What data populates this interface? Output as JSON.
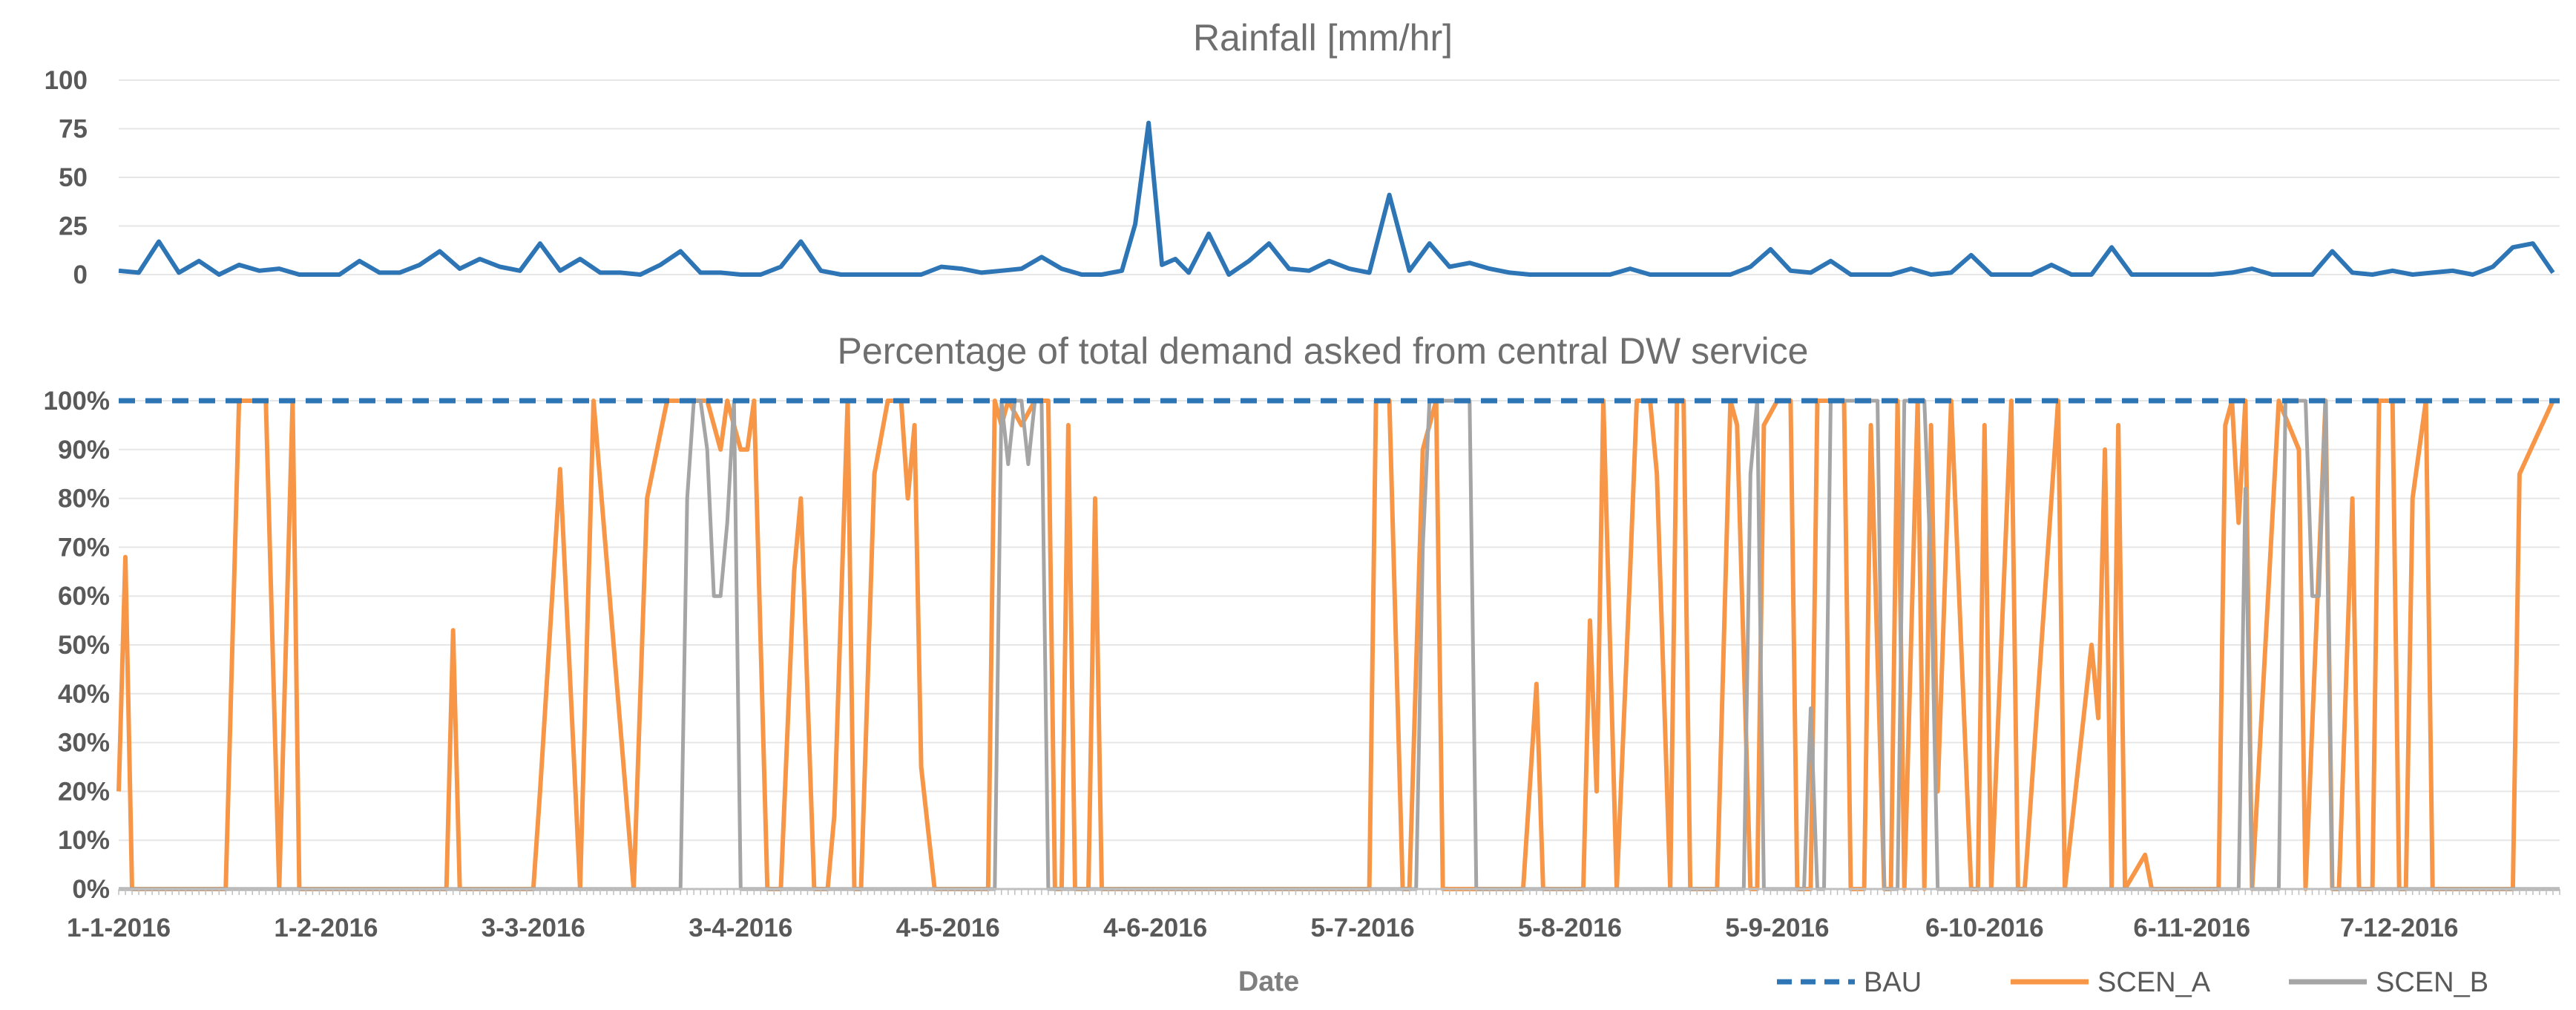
{
  "chart_data": [
    {
      "type": "line",
      "title": "Rainfall [mm/hr]",
      "xlabel": "",
      "ylabel": "",
      "ylim": [
        0,
        100
      ],
      "yticks": [
        "100",
        "75",
        "50",
        "25",
        "0"
      ],
      "x": [
        0,
        3,
        6,
        9,
        12,
        15,
        18,
        21,
        24,
        27,
        30,
        33,
        36,
        39,
        42,
        45,
        48,
        51,
        54,
        57,
        60,
        63,
        66,
        69,
        72,
        75,
        78,
        81,
        84,
        87,
        90,
        93,
        96,
        99,
        102,
        105,
        108,
        111,
        114,
        117,
        120,
        123,
        126,
        129,
        132,
        135,
        138,
        141,
        144,
        147,
        150,
        152,
        154,
        156,
        158,
        160,
        163,
        166,
        169,
        172,
        175,
        178,
        181,
        184,
        187,
        190,
        193,
        196,
        199,
        202,
        205,
        208,
        211,
        214,
        217,
        220,
        223,
        226,
        229,
        232,
        235,
        238,
        241,
        244,
        247,
        250,
        253,
        256,
        259,
        262,
        265,
        268,
        271,
        274,
        277,
        280,
        283,
        286,
        289,
        292,
        295,
        298,
        301,
        304,
        307,
        310,
        313,
        316,
        319,
        322,
        325,
        328,
        331,
        334,
        337,
        340,
        343,
        346,
        349,
        352,
        355,
        358,
        361,
        364
      ],
      "series": [
        {
          "name": "Rainfall",
          "values": [
            2,
            1,
            17,
            1,
            7,
            0,
            5,
            2,
            3,
            0,
            0,
            0,
            7,
            1,
            1,
            5,
            12,
            3,
            8,
            4,
            2,
            16,
            2,
            8,
            1,
            1,
            0,
            5,
            12,
            1,
            1,
            0,
            0,
            4,
            17,
            2,
            0,
            0,
            0,
            0,
            0,
            4,
            3,
            1,
            2,
            3,
            9,
            3,
            0,
            0,
            2,
            26,
            78,
            5,
            8,
            1,
            21,
            0,
            7,
            16,
            3,
            2,
            7,
            3,
            1,
            41,
            2,
            16,
            4,
            6,
            3,
            1,
            0,
            0,
            0,
            0,
            0,
            3,
            0,
            0,
            0,
            0,
            0,
            4,
            13,
            2,
            1,
            7,
            0,
            0,
            0,
            3,
            0,
            1,
            10,
            0,
            0,
            0,
            5,
            0,
            0,
            14,
            0,
            0,
            0,
            0,
            0,
            1,
            3,
            0,
            0,
            0,
            12,
            1,
            0,
            2,
            0,
            1,
            2,
            0,
            4,
            14,
            16,
            1
          ]
        }
      ]
    },
    {
      "type": "line",
      "title": "Percentage of total demand asked from central DW service",
      "xlabel": "Date",
      "ylabel": "",
      "ylim": [
        0,
        100
      ],
      "yticks": [
        "100%",
        "90%",
        "80%",
        "70%",
        "60%",
        "50%",
        "40%",
        "30%",
        "20%",
        "10%",
        "0%"
      ],
      "categories": [
        "1-1-2016",
        "1-2-2016",
        "3-3-2016",
        "3-4-2016",
        "4-5-2016",
        "4-6-2016",
        "5-7-2016",
        "5-8-2016",
        "5-9-2016",
        "6-10-2016",
        "6-11-2016",
        "7-12-2016"
      ],
      "legend_position": "bottom-right",
      "series": [
        {
          "name": "BAU",
          "style": "dashed",
          "x": [
            0,
            365
          ],
          "values": [
            100,
            100
          ]
        },
        {
          "name": "SCEN_A",
          "style": "solid",
          "x": [
            0,
            1,
            2,
            3,
            16,
            18,
            20,
            22,
            24,
            26,
            27,
            49,
            50,
            51,
            62,
            63,
            66,
            69,
            71,
            77,
            79,
            82,
            88,
            90,
            91,
            93,
            94,
            95,
            97,
            98,
            99,
            101,
            102,
            104,
            106,
            107,
            109,
            110,
            111,
            113,
            115,
            117,
            118,
            119,
            120,
            122,
            130,
            131,
            132,
            133,
            135,
            137,
            139,
            140,
            141,
            142,
            143,
            145,
            146,
            147,
            148,
            150,
            151,
            152,
            187,
            188,
            190,
            192,
            193,
            195,
            197,
            198,
            210,
            212,
            213,
            219,
            220,
            221,
            222,
            224,
            226,
            227,
            229,
            230,
            232,
            233,
            234,
            235,
            236,
            238,
            239,
            241,
            242,
            244,
            245,
            246,
            248,
            249,
            250,
            251,
            253,
            254,
            255,
            258,
            259,
            261,
            262,
            264,
            265,
            266,
            267,
            269,
            270,
            271,
            272,
            274,
            277,
            278,
            279,
            280,
            283,
            284,
            285,
            290,
            291,
            295,
            296,
            297,
            298,
            299,
            300,
            303,
            304,
            314,
            315,
            316,
            317,
            318,
            319,
            321,
            323,
            326,
            327,
            330,
            331,
            332,
            334,
            335,
            337,
            338,
            339,
            340,
            341,
            342,
            343,
            345,
            346,
            352,
            353,
            355,
            358,
            359,
            364,
            365
          ],
          "values": [
            20,
            68,
            0,
            0,
            0,
            100,
            100,
            100,
            0,
            100,
            0,
            0,
            53,
            0,
            0,
            20,
            86,
            0,
            100,
            0,
            80,
            100,
            100,
            90,
            100,
            90,
            90,
            100,
            0,
            0,
            0,
            65,
            80,
            0,
            0,
            15,
            100,
            0,
            0,
            85,
            100,
            100,
            80,
            95,
            25,
            0,
            0,
            100,
            95,
            100,
            95,
            100,
            100,
            0,
            0,
            95,
            0,
            0,
            80,
            0,
            0,
            0,
            0,
            0,
            0,
            100,
            100,
            0,
            0,
            90,
            100,
            0,
            0,
            42,
            0,
            0,
            55,
            20,
            100,
            0,
            65,
            100,
            100,
            85,
            0,
            100,
            100,
            0,
            0,
            0,
            0,
            100,
            95,
            0,
            0,
            95,
            100,
            100,
            100,
            0,
            0,
            100,
            100,
            100,
            0,
            0,
            95,
            0,
            0,
            100,
            0,
            100,
            0,
            95,
            20,
            100,
            0,
            0,
            95,
            0,
            100,
            0,
            0,
            100,
            0,
            50,
            35,
            90,
            0,
            95,
            0,
            7,
            0,
            0,
            95,
            100,
            75,
            100,
            0,
            50,
            100,
            90,
            0,
            100,
            0,
            0,
            80,
            0,
            0,
            100,
            100,
            100,
            0,
            0,
            80,
            100,
            0,
            0,
            0,
            0,
            0,
            85,
            100,
            100
          ]
        },
        {
          "name": "SCEN_B",
          "style": "solid",
          "x": [
            0,
            84,
            85,
            86,
            87,
            88,
            89,
            90,
            91,
            92,
            93,
            131,
            132,
            133,
            134,
            135,
            136,
            137,
            138,
            139,
            140,
            141,
            194,
            195,
            196,
            198,
            199,
            201,
            202,
            203,
            243,
            244,
            245,
            246,
            252,
            253,
            254,
            255,
            256,
            257,
            262,
            263,
            264,
            265,
            266,
            267,
            270,
            271,
            272,
            273,
            274,
            279,
            280,
            281,
            282,
            284,
            285,
            286,
            287,
            288,
            289,
            290,
            291,
            292,
            293,
            294,
            295,
            296,
            297,
            298,
            299,
            300,
            301,
            302,
            303,
            304,
            305,
            317,
            318,
            319,
            321,
            322,
            323,
            324,
            325,
            326,
            327,
            328,
            329,
            330,
            331,
            332,
            333,
            334,
            335,
            365
          ],
          "values": [
            0,
            0,
            80,
            100,
            100,
            90,
            60,
            60,
            75,
            100,
            0,
            0,
            100,
            87,
            100,
            100,
            87,
            100,
            100,
            0,
            0,
            0,
            0,
            70,
            100,
            100,
            100,
            100,
            100,
            0,
            0,
            85,
            100,
            0,
            0,
            37,
            0,
            0,
            100,
            100,
            100,
            100,
            0,
            0,
            0,
            100,
            100,
            65,
            0,
            0,
            0,
            0,
            0,
            0,
            0,
            0,
            0,
            0,
            0,
            0,
            0,
            0,
            0,
            0,
            0,
            0,
            0,
            0,
            0,
            0,
            0,
            0,
            0,
            0,
            0,
            0,
            0,
            0,
            82,
            0,
            0,
            0,
            0,
            100,
            100,
            100,
            100,
            60,
            60,
            100,
            0,
            0,
            0,
            0,
            0,
            0
          ]
        }
      ]
    }
  ],
  "colors": {
    "bau": "#2e75b6",
    "scen_a": "#f79646",
    "scen_b": "#a5a5a5",
    "rainfall": "#2e75b6"
  }
}
